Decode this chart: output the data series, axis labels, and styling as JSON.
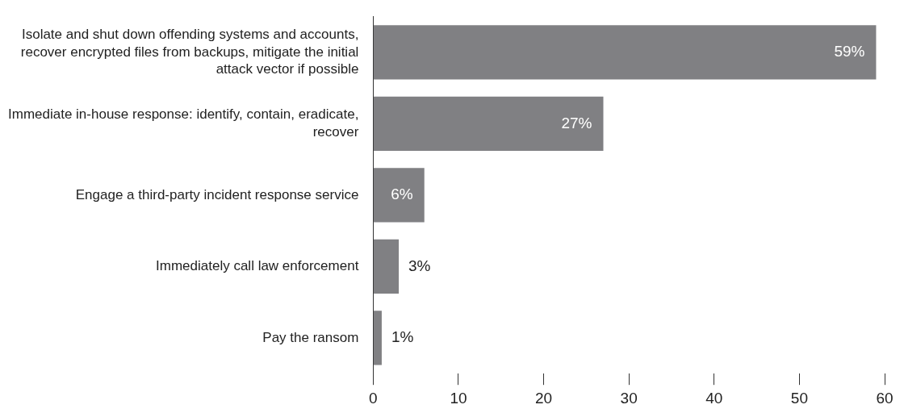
{
  "chart_data": {
    "type": "bar",
    "orientation": "horizontal",
    "categories": [
      "Isolate and shut down offending systems and accounts, recover encrypted files from backups, mitigate the initial attack vector if possible",
      "Immediate in-house response: identify, contain, eradicate, recover",
      "Engage a third-party incident response service",
      "Immediately call law enforcement",
      "Pay the ransom"
    ],
    "values": [
      59,
      27,
      6,
      3,
      1
    ],
    "value_labels": [
      "59%",
      "27%",
      "6%",
      "3%",
      "1%"
    ],
    "color": "#808083",
    "xlim": [
      0,
      60
    ],
    "xticks": [
      0,
      10,
      20,
      30,
      40,
      50,
      60
    ],
    "grid": false,
    "legend": false
  }
}
